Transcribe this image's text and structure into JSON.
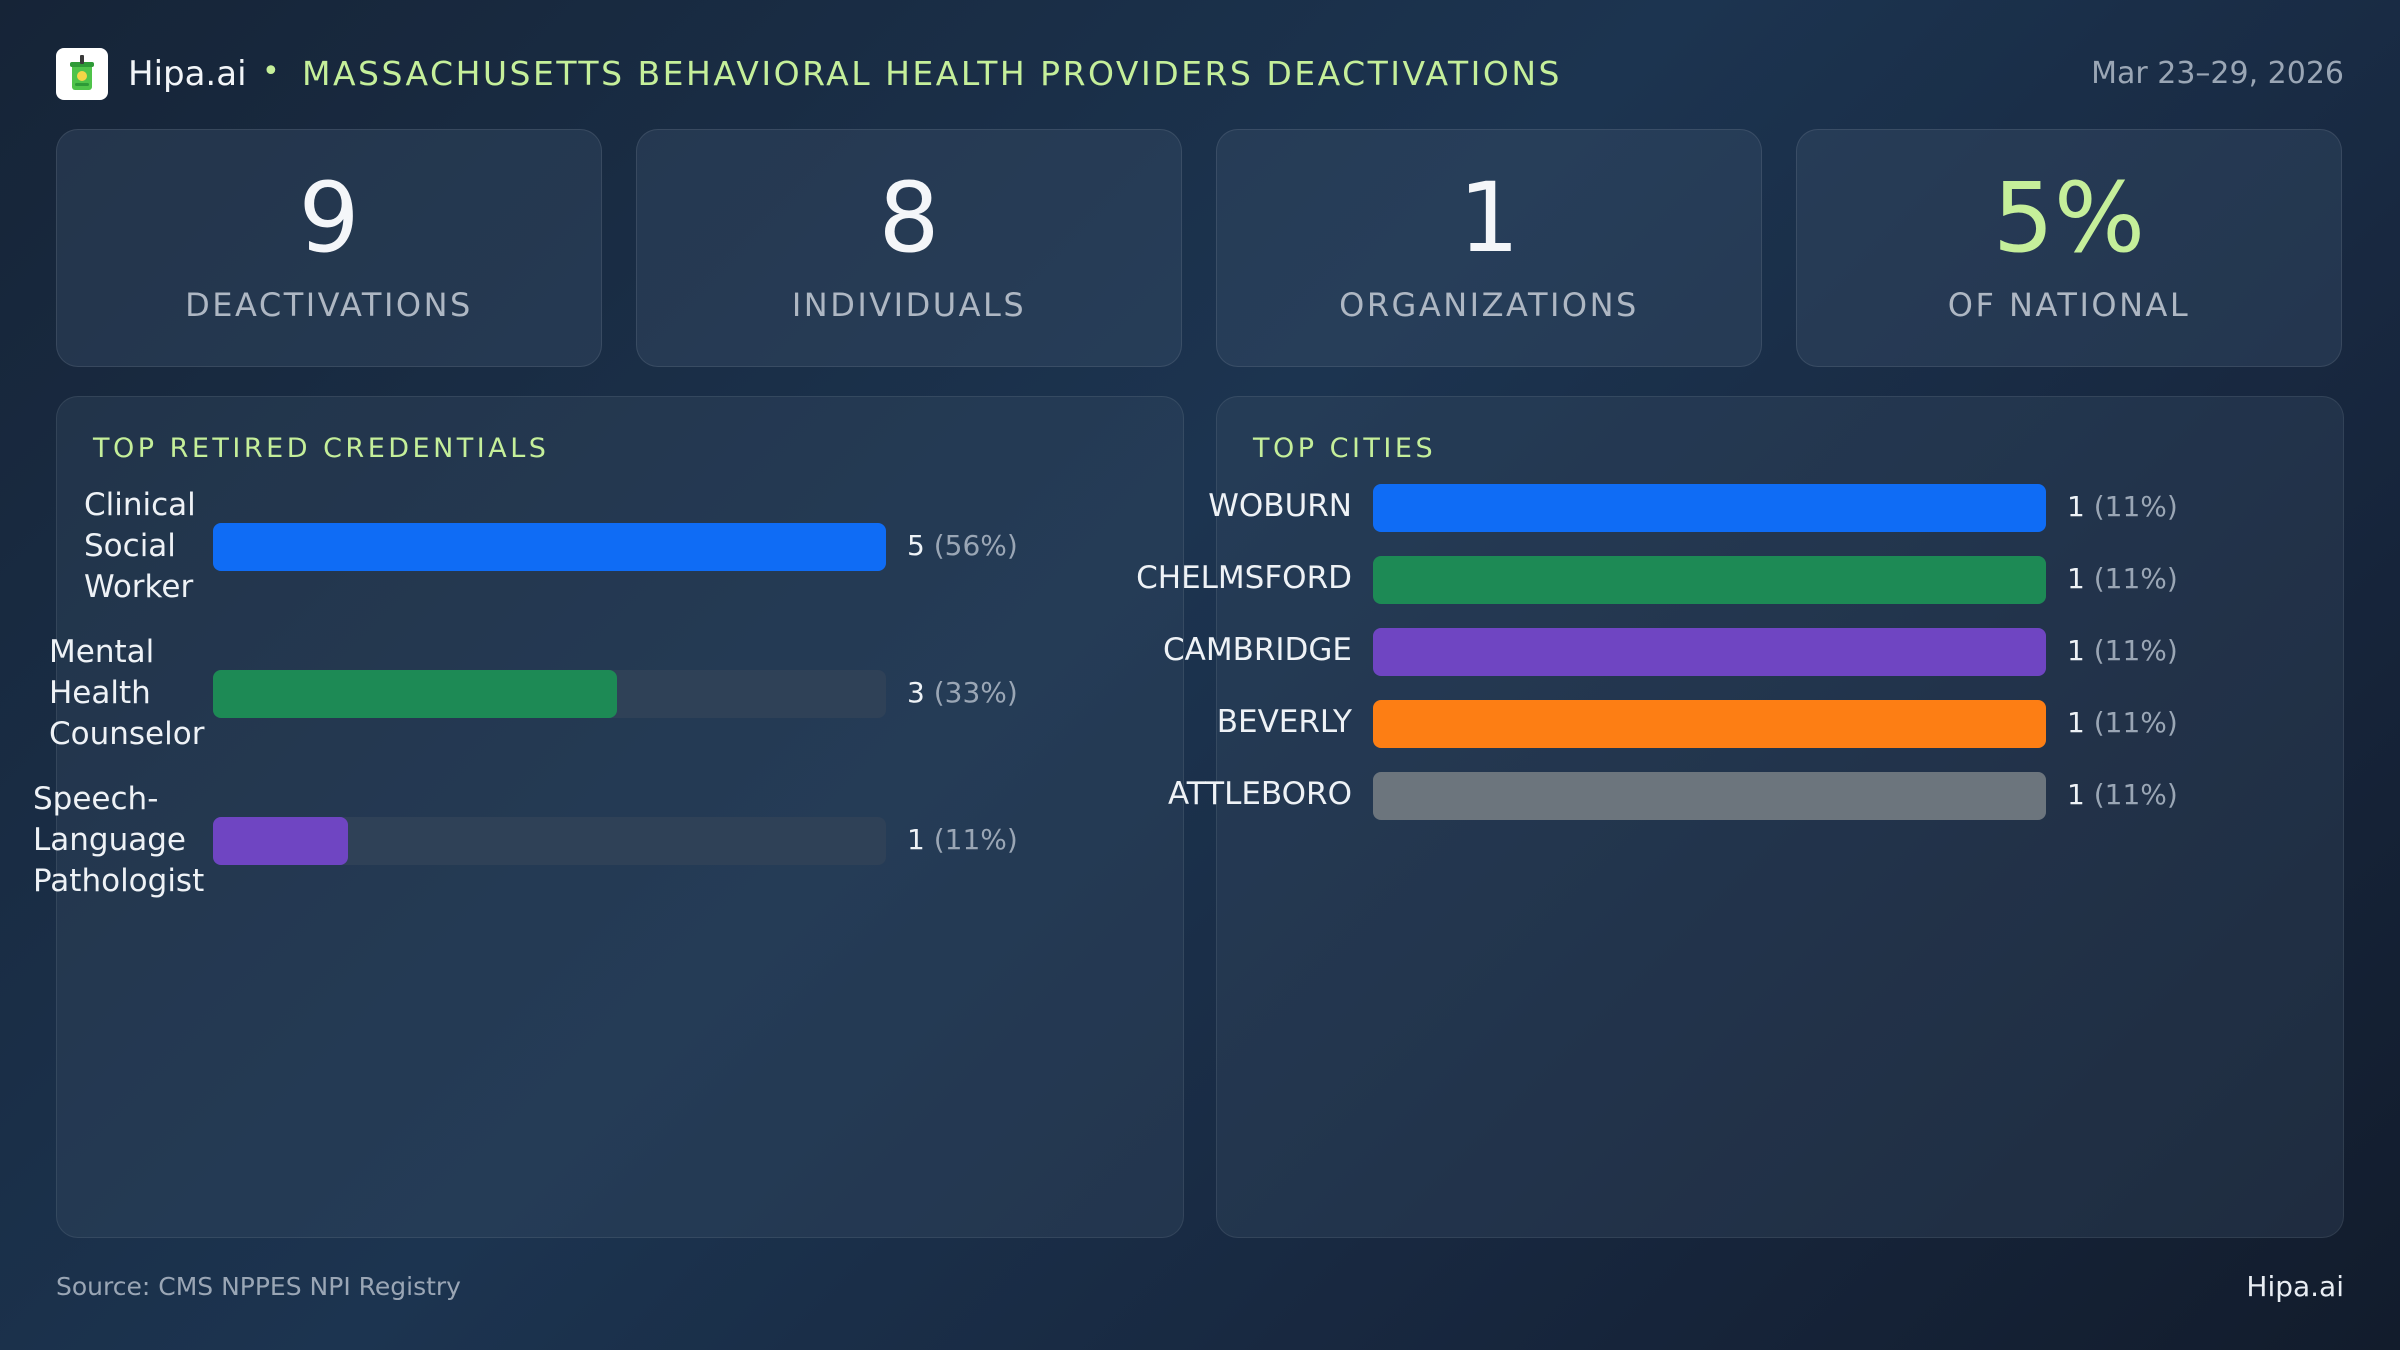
{
  "header": {
    "brand": "Hipa.ai",
    "separator": "•",
    "title": "MASSACHUSETTS BEHAVIORAL HEALTH PROVIDERS DEACTIVATIONS",
    "date_range": "Mar 23–29, 2026",
    "logo_icon": "cup-logo-icon"
  },
  "kpis": [
    {
      "value": "9",
      "label": "DEACTIVATIONS"
    },
    {
      "value": "8",
      "label": "INDIVIDUALS"
    },
    {
      "value": "1",
      "label": "ORGANIZATIONS"
    },
    {
      "value": "5%",
      "label": "OF NATIONAL"
    }
  ],
  "chart_data": [
    {
      "type": "bar",
      "orientation": "horizontal",
      "title": "TOP RETIRED CREDENTIALS",
      "categories": [
        "Clinical Social Worker",
        "Mental Health Counselor",
        "Speech-Language Pathologist"
      ],
      "display_labels": [
        [
          "Clinical",
          "Social",
          "Worker"
        ],
        [
          "Mental",
          "Health",
          "Counselor"
        ],
        [
          "Speech-",
          "Language",
          "Pathologist"
        ]
      ],
      "values": [
        5,
        3,
        1
      ],
      "percents": [
        "(56%)",
        "(33%)",
        "(11%)"
      ],
      "colors": [
        "#0f6cf5",
        "#1d8a55",
        "#6f45c2"
      ],
      "xlim": [
        0,
        5
      ],
      "track_color": "#2f4157"
    },
    {
      "type": "bar",
      "orientation": "horizontal",
      "title": "TOP CITIES",
      "categories": [
        "WOBURN",
        "CHELMSFORD",
        "CAMBRIDGE",
        "BEVERLY",
        "ATTLEBORO"
      ],
      "values": [
        1,
        1,
        1,
        1,
        1
      ],
      "percents": [
        "(11%)",
        "(11%)",
        "(11%)",
        "(11%)",
        "(11%)"
      ],
      "colors": [
        "#0f6cf5",
        "#1d8a55",
        "#6f45c2",
        "#fd7e14",
        "#6c757d"
      ],
      "xlim": [
        0,
        1
      ],
      "track_color": "#2f4157"
    }
  ],
  "footer": {
    "source": "Source: CMS NPPES NPI Registry",
    "brand": "Hipa.ai"
  }
}
